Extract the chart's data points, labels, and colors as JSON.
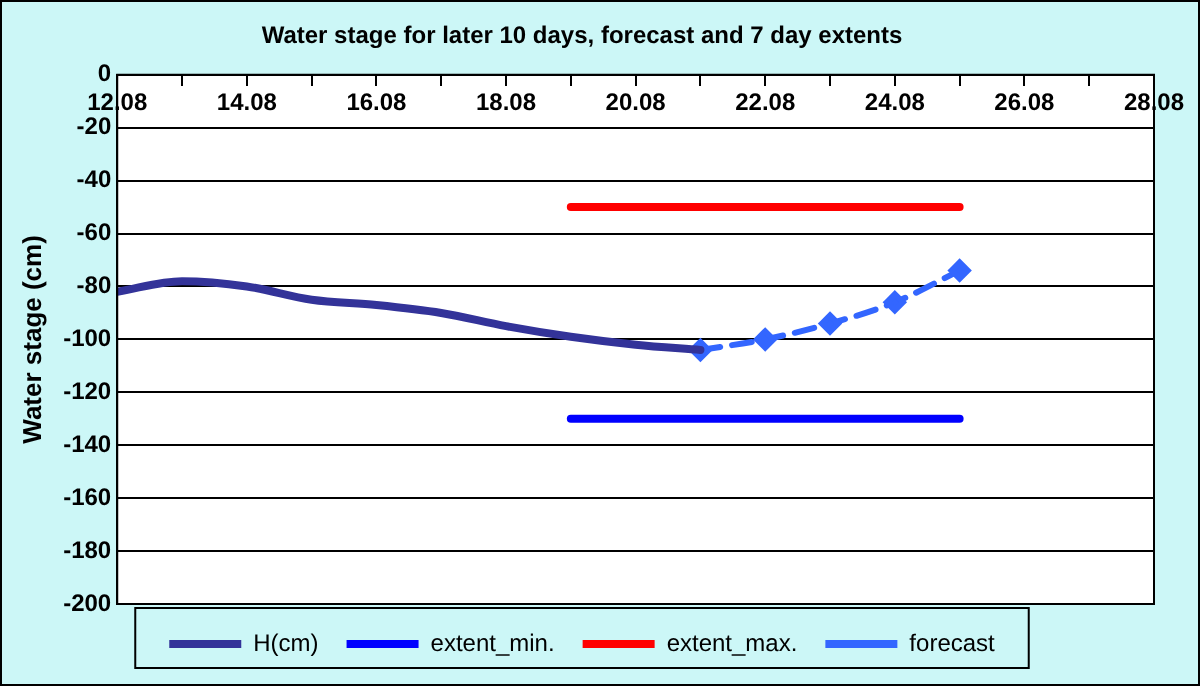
{
  "chart_data": {
    "type": "line",
    "title": "Water stage for later 10 days, forecast and 7 day extents",
    "ylabel": "Water stage (cm)",
    "xlim": [
      "--08-12",
      "--08-28"
    ],
    "xticks": [
      {
        "value": "--08-12",
        "label": "12.08"
      },
      {
        "value": "--08-13",
        "label": null
      },
      {
        "value": "--08-14",
        "label": "14.08"
      },
      {
        "value": "--08-15",
        "label": null
      },
      {
        "value": "--08-16",
        "label": "16.08"
      },
      {
        "value": "--08-17",
        "label": null
      },
      {
        "value": "--08-18",
        "label": "18.08"
      },
      {
        "value": "--08-19",
        "label": null
      },
      {
        "value": "--08-20",
        "label": "20.08"
      },
      {
        "value": "--08-21",
        "label": null
      },
      {
        "value": "--08-22",
        "label": "22.08"
      },
      {
        "value": "--08-23",
        "label": null
      },
      {
        "value": "--08-24",
        "label": "24.08"
      },
      {
        "value": "--08-25",
        "label": null
      },
      {
        "value": "--08-26",
        "label": "26.08"
      },
      {
        "value": "--08-27",
        "label": null
      },
      {
        "value": "--08-28",
        "label": "28.08"
      }
    ],
    "ylim": [
      -200,
      0
    ],
    "yticks": [
      -200,
      -180,
      -160,
      -140,
      -120,
      -100,
      -80,
      -60,
      -40,
      -20,
      0
    ],
    "grid": "y",
    "legend": "bottom",
    "series": [
      {
        "name": "H(cm)",
        "color": "#333399",
        "x": [
          "--08-12",
          "--08-13",
          "--08-14",
          "--08-15",
          "--08-16",
          "--08-17",
          "--08-18",
          "--08-19",
          "--08-20",
          "--08-21"
        ],
        "values": [
          -82,
          -78,
          -80,
          -85,
          -87,
          -90,
          -95,
          -99,
          -102,
          -104
        ],
        "line_style": "solid",
        "marker": "none"
      },
      {
        "name": "extent_min.",
        "color": "#0000ff",
        "x": [
          "--08-19",
          "--08-25"
        ],
        "values": [
          -130,
          -130
        ],
        "line_style": "solid",
        "marker": "none"
      },
      {
        "name": "extent_max.",
        "color": "#ff0000",
        "x": [
          "--08-19",
          "--08-25"
        ],
        "values": [
          -50,
          -50
        ],
        "line_style": "solid",
        "marker": "none"
      },
      {
        "name": "forecast",
        "color": "#3366ff",
        "x": [
          "--08-21",
          "--08-22",
          "--08-23",
          "--08-24",
          "--08-25"
        ],
        "values": [
          -104,
          -100,
          -94,
          -86,
          -74
        ],
        "line_style": "dashed",
        "marker": "diamond"
      }
    ]
  }
}
